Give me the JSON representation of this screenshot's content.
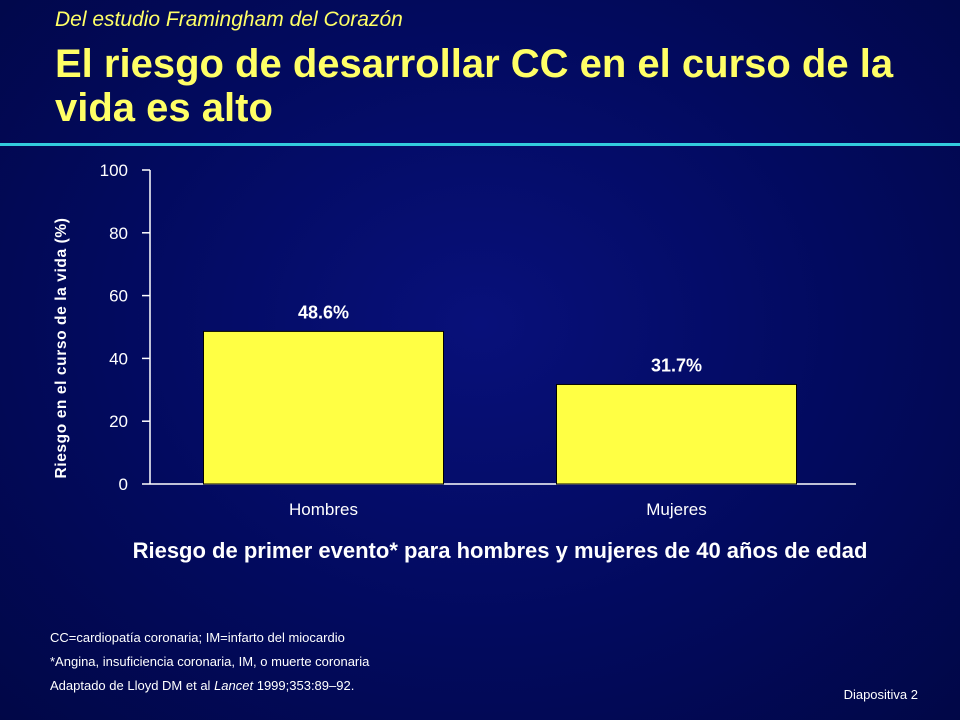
{
  "slide": {
    "subtitle": "Del estudio Framingham del Corazón",
    "title": "El riesgo de desarrollar CC en el curso de la vida es alto",
    "footnotes": {
      "line1": "CC=cardiopatía coronaria; IM=infarto del miocardio",
      "line2": "*Angina, insuficiencia coronaria, IM, o muerte coronaria",
      "line3_prefix": "Adaptado de Lloyd DM et al ",
      "line3_journal": "Lancet",
      "line3_suffix": " 1999;353:89–92."
    },
    "slide_number": "Diapositiva 2",
    "colors": {
      "background": "#020a5e",
      "title": "#ffff66",
      "rule": "#33ccdd",
      "bar": "#ffff44",
      "text": "#ffffff"
    }
  },
  "chart_data": {
    "type": "bar",
    "categories": [
      "Hombres",
      "Mujeres"
    ],
    "values": [
      48.6,
      31.7
    ],
    "data_labels": [
      "48.6%",
      "31.7%"
    ],
    "ylabel": "Riesgo en el curso de la vida (%)",
    "ylim": [
      0,
      100
    ],
    "yticks": [
      0,
      20,
      40,
      60,
      80,
      100
    ],
    "caption": "Riesgo de primer evento* para hombres y mujeres de 40 años de edad",
    "grid": false
  }
}
